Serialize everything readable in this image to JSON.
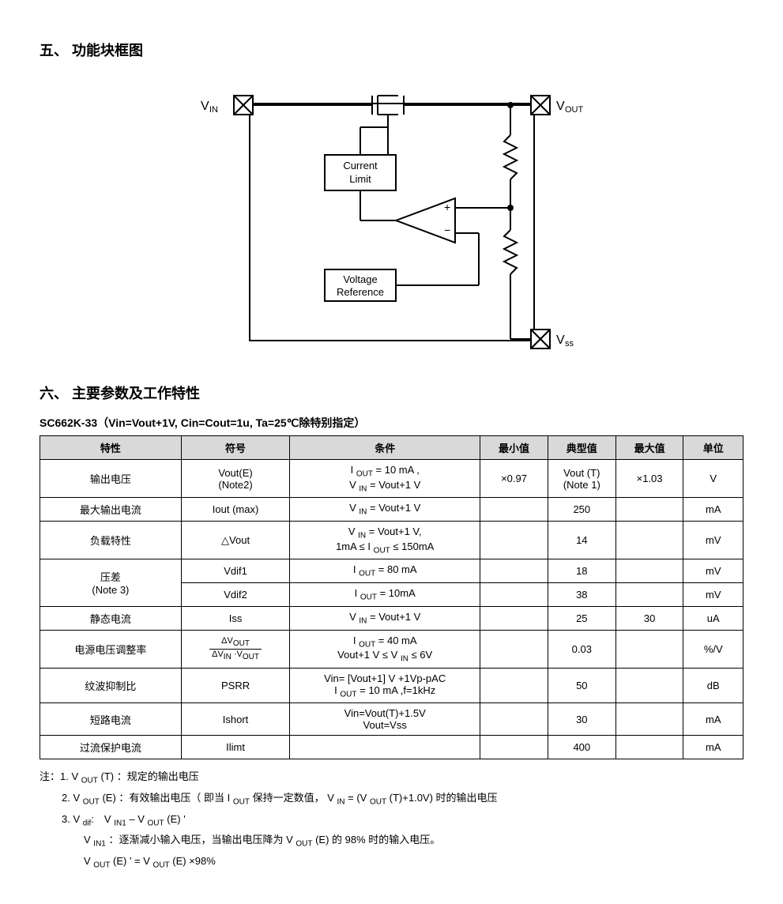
{
  "section5": {
    "heading": "五、 功能块框图"
  },
  "diagram": {
    "labels": {
      "vin": "VIN",
      "vout": "VOUT",
      "vss": "Vss",
      "current_limit": "Current\nLimit",
      "voltage_reference": "Voltage\nReference",
      "opamp_plus": "+",
      "opamp_minus": "−"
    },
    "style": {
      "stroke": "#000000",
      "stroke_width": 2,
      "fill": "#ffffff",
      "font_family": "Arial",
      "label_fontsize": 14,
      "box_fontsize": 13
    }
  },
  "section6": {
    "heading": "六、 主要参数及工作特性",
    "subheading": "SC662K-33（Vin=Vout+1V, Cin=Cout=1u, Ta=25℃除特别指定）"
  },
  "table": {
    "headers": {
      "characteristic": "特性",
      "symbol": "符号",
      "condition": "条件",
      "min": "最小值",
      "typ": "典型值",
      "max": "最大值",
      "unit": "单位"
    },
    "rows": {
      "r1": {
        "char": "输出电压",
        "sym": "Vout(E)\n(Note2)",
        "cond_html": "I <sub>OUT</sub> = 10 mA ,<br>V <sub>IN</sub> = Vout+1 V",
        "min": "×0.97",
        "typ": "Vout (T)\n(Note 1)",
        "max": "×1.03",
        "unit": "V"
      },
      "r2": {
        "char": "最大输出电流",
        "sym": "Iout (max)",
        "cond_html": "V <sub>IN</sub> = Vout+1 V",
        "min": "",
        "typ": "250",
        "max": "",
        "unit": "mA"
      },
      "r3": {
        "char": "负载特性",
        "sym": "△Vout",
        "cond_html": "V <sub>IN</sub> = Vout+1 V,<br>1mA ≤ I <sub>OUT</sub> ≤ 150mA",
        "min": "",
        "typ": "14",
        "max": "",
        "unit": "mV"
      },
      "r4": {
        "char": "压差\n(Note 3)",
        "sym": "Vdif1",
        "cond_html": "I <sub>OUT</sub> = 80 mA",
        "min": "",
        "typ": "18",
        "max": "",
        "unit": "mV"
      },
      "r5": {
        "sym": "Vdif2",
        "cond_html": "I <sub>OUT</sub> = 10mA",
        "min": "",
        "typ": "38",
        "max": "",
        "unit": "mV"
      },
      "r6": {
        "char": "静态电流",
        "sym": "Iss",
        "cond_html": "V <sub>IN</sub> = Vout+1 V",
        "min": "",
        "typ": "25",
        "max": "30",
        "unit": "uA"
      },
      "r7": {
        "char": "电源电压调整率",
        "sym_frac_num": "ΔV<sub>OUT</sub>",
        "sym_frac_den": "ΔV<sub>IN</sub> ·V<sub>OUT</sub>",
        "cond_html": "I <sub>OUT</sub> = 40 mA<br>Vout+1 V ≤ V <sub>IN</sub> ≤ 6V",
        "min": "",
        "typ": "0.03",
        "max": "",
        "unit": "%/V"
      },
      "r8": {
        "char": "纹波抑制比",
        "sym": "PSRR",
        "cond_html": "Vin= [Vout+1] V +1Vp-pAC<br>I <sub>OUT</sub> = 10 mA ,f=1kHz",
        "min": "",
        "typ": "50",
        "max": "",
        "unit": "dB"
      },
      "r9": {
        "char": "短路电流",
        "sym": "Ishort",
        "cond_html": "Vin=Vout(T)+1.5V<br>Vout=Vss",
        "min": "",
        "typ": "30",
        "max": "",
        "unit": "mA"
      },
      "r10": {
        "char": "过流保护电流",
        "sym": "Ilimt",
        "cond_html": "",
        "min": "",
        "typ": "400",
        "max": "",
        "unit": "mA"
      }
    }
  },
  "notes": {
    "intro": "注：",
    "n1": "1. V <sub>OUT</sub> (T) ：规定的输出电压",
    "n2": "2. V <sub>OUT</sub> (E) ：有效输出电压（ 即当 I <sub>OUT</sub> 保持一定数值， V <sub>IN</sub> = (V <sub>OUT</sub> (T)+1.0V) 时的输出电压",
    "n3": "3. V <sub>dif</sub>:　V <sub>IN1</sub> – V <sub>OUT</sub> (E) '",
    "n3a": "V <sub>IN1</sub> ：逐渐减小输入电压，当输出电压降为 V <sub>OUT</sub> (E) 的 98% 时的输入电压。",
    "n3b": "V <sub>OUT</sub> (E) ' = V <sub>OUT</sub> (E) ×98%"
  }
}
